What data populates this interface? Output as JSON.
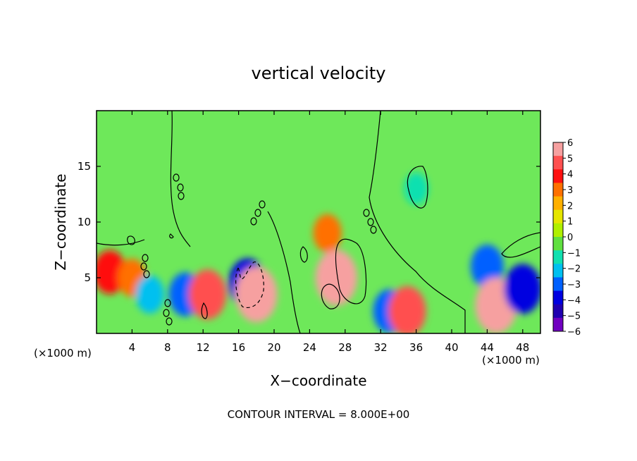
{
  "chart_data": {
    "type": "heatmap",
    "title": "vertical velocity",
    "xlabel": "X−coordinate",
    "ylabel": "Z−coordinate",
    "x_unit": "(×1000 m)",
    "footer": "CONTOUR INTERVAL = 8.000E+00",
    "xlim": [
      0,
      50
    ],
    "ylim": [
      0,
      20
    ],
    "x_ticks": [
      "4",
      "8",
      "12",
      "16",
      "20",
      "24",
      "28",
      "32",
      "36",
      "40",
      "44",
      "48"
    ],
    "y_ticks": [
      "5",
      "10",
      "15"
    ],
    "colorbar": {
      "labels": [
        "6",
        "5",
        "4",
        "3",
        "2",
        "1",
        "0",
        "−1",
        "−2",
        "−3",
        "−4",
        "−5",
        "−6"
      ],
      "levels": [
        6,
        5,
        4,
        3,
        2,
        1,
        0,
        -1,
        -2,
        -3,
        -4,
        -5,
        -6
      ],
      "colors": [
        "#f6a0a0",
        "#ff5050",
        "#ff1010",
        "#ff7000",
        "#ffb000",
        "#e6e600",
        "#b0f000",
        "#60e040",
        "#10e0b0",
        "#00c0f0",
        "#0060ff",
        "#0000e0",
        "#2000b0",
        "#7000c0"
      ]
    },
    "background_color": "#6ee85a",
    "features": [
      {
        "x": 1.5,
        "z": 5.5,
        "value": 4
      },
      {
        "x": 4,
        "z": 5,
        "value": 3
      },
      {
        "x": 6,
        "z": 3.5,
        "value": -3
      },
      {
        "x": 10,
        "z": 3.5,
        "value": -4
      },
      {
        "x": 12.5,
        "z": 3.5,
        "value": 5
      },
      {
        "x": 17,
        "z": 4.5,
        "value": -5
      },
      {
        "x": 18,
        "z": 3.5,
        "value": 6
      },
      {
        "x": 26,
        "z": 9,
        "value": 3
      },
      {
        "x": 27,
        "z": 5,
        "value": 6
      },
      {
        "x": 33,
        "z": 2,
        "value": -4
      },
      {
        "x": 35,
        "z": 2,
        "value": 5
      },
      {
        "x": 36,
        "z": 13,
        "value": -2
      },
      {
        "x": 44,
        "z": 6,
        "value": -4
      },
      {
        "x": 45,
        "z": 2.5,
        "value": 6
      },
      {
        "x": 48,
        "z": 4,
        "value": -5
      }
    ]
  }
}
